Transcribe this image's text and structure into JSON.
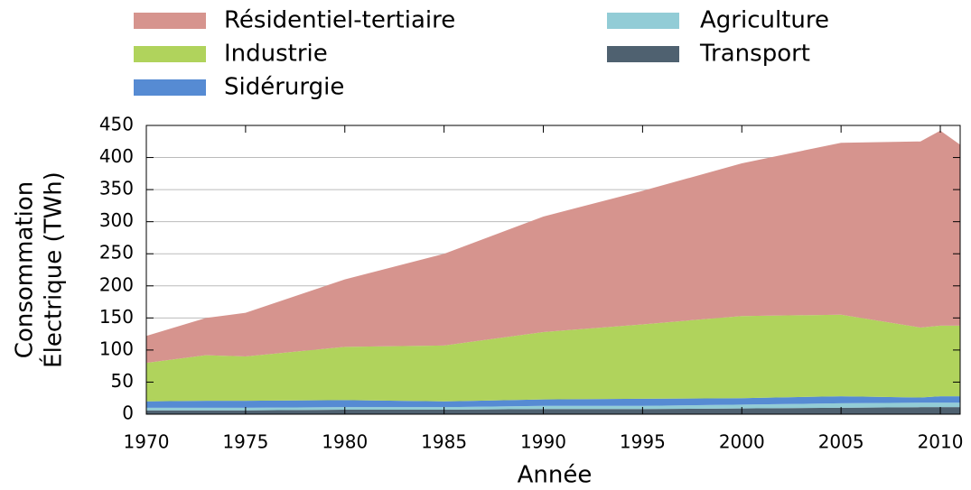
{
  "chart_data": {
    "type": "stacked_area",
    "xlabel": "Année",
    "ylabel": [
      "Consommation",
      "Électrique (TWh)"
    ],
    "x": [
      1970,
      1973,
      1975,
      1980,
      1985,
      1990,
      1995,
      2000,
      2005,
      2009,
      2010,
      2011
    ],
    "series": [
      {
        "name": "Transport",
        "color": "#4f6170",
        "values": [
          6,
          6,
          6,
          7,
          7,
          8,
          8,
          9,
          10,
          11,
          11,
          11
        ]
      },
      {
        "name": "Agriculture",
        "color": "#92ccd6",
        "values": [
          4,
          4,
          4,
          4,
          4,
          5,
          5,
          6,
          7,
          7,
          7,
          7
        ]
      },
      {
        "name": "Sidérurgie",
        "color": "#568bd3",
        "values": [
          10,
          11,
          11,
          11,
          9,
          10,
          11,
          10,
          11,
          8,
          10,
          10
        ]
      },
      {
        "name": "Industrie",
        "color": "#b0d35c",
        "values": [
          60,
          71,
          69,
          83,
          87,
          105,
          116,
          128,
          127,
          109,
          110,
          110
        ]
      },
      {
        "name": "Résidentiel-tertiaire",
        "color": "#d6948e",
        "values": [
          42,
          58,
          68,
          105,
          143,
          180,
          208,
          238,
          268,
          290,
          304,
          282
        ]
      }
    ],
    "xlim": [
      1970,
      2011
    ],
    "xticks": [
      1970,
      1975,
      1980,
      1985,
      1990,
      1995,
      2000,
      2005,
      2010
    ],
    "ylim": [
      0,
      450
    ],
    "yticks": [
      0,
      50,
      100,
      150,
      200,
      250,
      300,
      350,
      400,
      450
    ],
    "grid": true
  }
}
